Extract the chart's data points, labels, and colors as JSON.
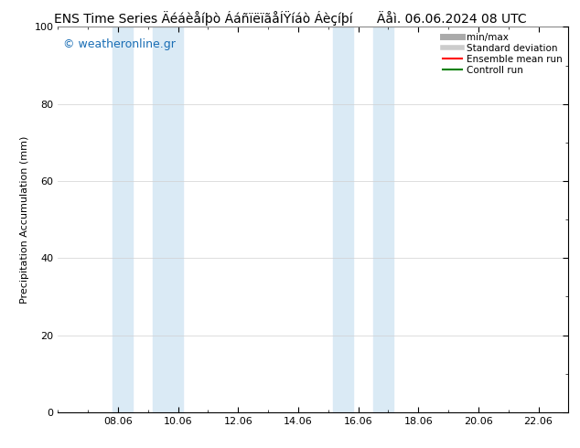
{
  "title": "ENS Time Series Äéáèåíþò ÁáñïëïãåÍŸíáò Áèçíþí",
  "title_left": "ENS Time Series Äéáèåíþò ÁáñïëïãåÍŸíáò Áèçíþí",
  "title_right": "Äåì. 06.06.2024 08 UTC",
  "ylabel": "Precipitation Accumulation (mm)",
  "ylim": [
    0,
    100
  ],
  "yticks": [
    0,
    20,
    40,
    60,
    80,
    100
  ],
  "xlim": [
    6.0,
    23.0
  ],
  "xtick_positions": [
    8,
    10,
    12,
    14,
    16,
    18,
    20,
    22
  ],
  "xticklabels": [
    "08.06",
    "10.06",
    "12.06",
    "14.06",
    "16.06",
    "18.06",
    "20.06",
    "22.06"
  ],
  "watermark": "© weatheronline.gr",
  "bg_color": "#ffffff",
  "plot_bg_color": "#ffffff",
  "shade_color": "#daeaf5",
  "shaded_regions": [
    [
      7.83,
      8.5
    ],
    [
      9.17,
      10.17
    ],
    [
      15.17,
      15.83
    ],
    [
      16.5,
      17.17
    ]
  ],
  "legend_entries": [
    {
      "label": "min/max",
      "color": "#aaaaaa",
      "linewidth": 5
    },
    {
      "label": "Standard deviation",
      "color": "#cccccc",
      "linewidth": 4
    },
    {
      "label": "Ensemble mean run",
      "color": "#ff0000",
      "linewidth": 1.5
    },
    {
      "label": "Controll run",
      "color": "#008000",
      "linewidth": 1.5
    }
  ],
  "title_fontsize": 10,
  "tick_fontsize": 8,
  "ylabel_fontsize": 8,
  "watermark_color": "#1a6eb5",
  "watermark_fontsize": 9,
  "grid_color": "#d0d0d0",
  "border_color": "#000000"
}
